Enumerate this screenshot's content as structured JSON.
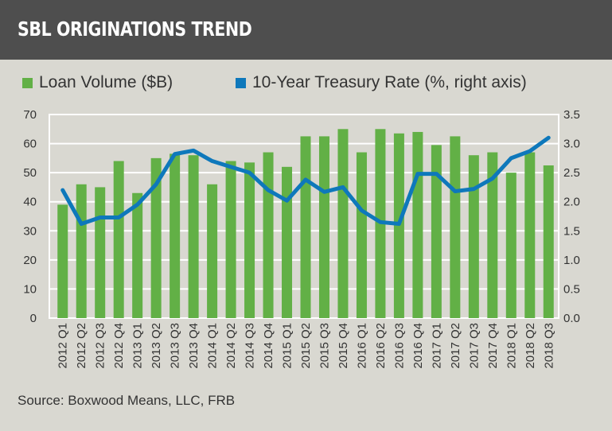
{
  "header": {
    "title": "SBL ORIGINATIONS TREND"
  },
  "source": "Source: Boxwood Means, LLC, FRB",
  "colors": {
    "bar": "#62b046",
    "line": "#0e78bb",
    "header_bg": "#4e4e4e",
    "background": "#d9d8d1"
  },
  "chart_data": {
    "type": "bar+line",
    "legend_position": "top",
    "grid": true,
    "categories": [
      "2012 Q1",
      "2012 Q2",
      "2012 Q3",
      "2012 Q4",
      "2013 Q1",
      "2013 Q2",
      "2013 Q3",
      "2013 Q4",
      "2014 Q1",
      "2014 Q2",
      "2014 Q3",
      "2014 Q4",
      "2015 Q1",
      "2015 Q2",
      "2015 Q3",
      "2015 Q4",
      "2016 Q1",
      "2016 Q2",
      "2016 Q3",
      "2016 Q4",
      "2017 Q1",
      "2017 Q2",
      "2017 Q3",
      "2017 Q4",
      "2018 Q1",
      "2018 Q2",
      "2018 Q3"
    ],
    "series": [
      {
        "name": "Loan Volume ($B)",
        "type": "bar",
        "axis": "left",
        "values": [
          39,
          46,
          45,
          54,
          43,
          55,
          56.5,
          56,
          46,
          54,
          53.5,
          57,
          52,
          62.5,
          62.5,
          65,
          57,
          65,
          63.5,
          64,
          59.5,
          62.5,
          56,
          57,
          50,
          57,
          52.5
        ]
      },
      {
        "name": "10-Year Treasury Rate (%, right axis)",
        "type": "line",
        "axis": "right",
        "values": [
          2.2,
          1.62,
          1.73,
          1.73,
          1.95,
          2.3,
          2.82,
          2.88,
          2.7,
          2.6,
          2.5,
          2.2,
          2.02,
          2.38,
          2.17,
          2.25,
          1.85,
          1.65,
          1.62,
          2.48,
          2.48,
          2.18,
          2.22,
          2.4,
          2.75,
          2.87,
          3.1
        ]
      }
    ],
    "y_left": {
      "lim": [
        0,
        70
      ],
      "ticks": [
        "0",
        "10",
        "20",
        "30",
        "40",
        "50",
        "60",
        "70"
      ]
    },
    "y_right": {
      "lim": [
        0,
        3.5
      ],
      "ticks": [
        "0.0",
        "0.5",
        "1.0",
        "1.5",
        "2.0",
        "2.5",
        "3.0",
        "3.5"
      ]
    }
  }
}
